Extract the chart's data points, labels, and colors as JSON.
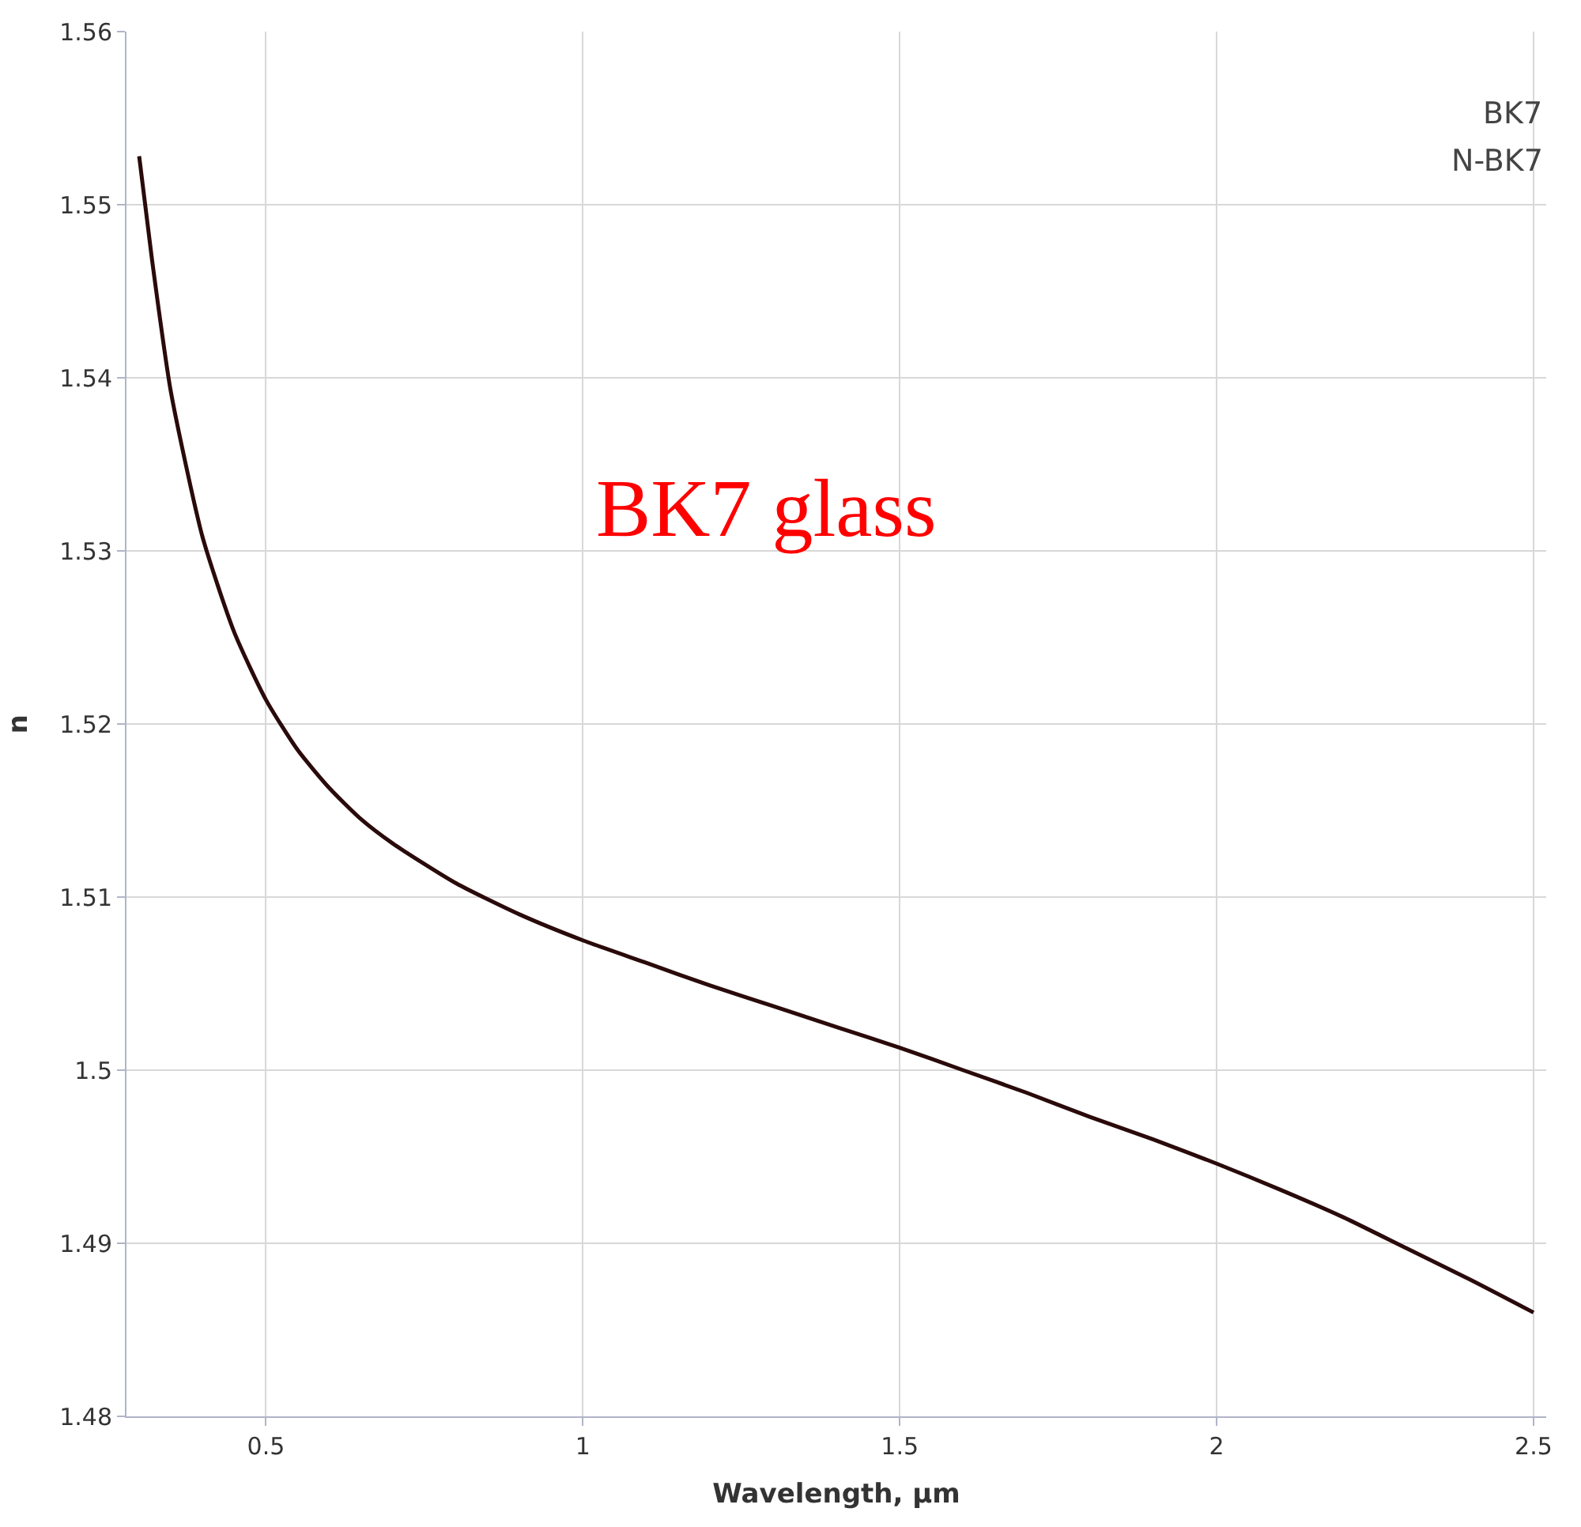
{
  "chart_data": {
    "type": "line",
    "title": "BK7 glass",
    "xlabel": "Wavelength, μm",
    "ylabel": "n",
    "annotations": [
      "BK7",
      "N-BK7"
    ],
    "x": [
      0.3,
      0.32,
      0.35,
      0.4,
      0.45,
      0.5,
      0.55,
      0.6,
      0.65,
      0.7,
      0.8,
      0.9,
      1.0,
      1.1,
      1.2,
      1.3,
      1.4,
      1.5,
      1.6,
      1.7,
      1.8,
      1.9,
      2.0,
      2.1,
      2.2,
      2.3,
      2.4,
      2.5
    ],
    "series": [
      {
        "color": "#2a0a0a",
        "values": [
          1.5528,
          1.5469,
          1.5392,
          1.5308,
          1.5253,
          1.5214,
          1.5185,
          1.5163,
          1.5145,
          1.5131,
          1.5108,
          1.509,
          1.5075,
          1.5062,
          1.5049,
          1.5037,
          1.5025,
          1.5013,
          1.5,
          1.4987,
          1.4973,
          1.496,
          1.4946,
          1.4931,
          1.4915,
          1.4897,
          1.4879,
          1.486
        ]
      }
    ],
    "xlim": [
      0.28,
      2.52
    ],
    "xticks": [
      0.5,
      1,
      1.5,
      2,
      2.5
    ],
    "ylim": [
      1.48,
      1.56
    ],
    "yticks": [
      1.48,
      1.49,
      1.5,
      1.51,
      1.52,
      1.53,
      1.54,
      1.55,
      1.56
    ],
    "grid": true,
    "marker": "none",
    "line_style": "solid"
  }
}
